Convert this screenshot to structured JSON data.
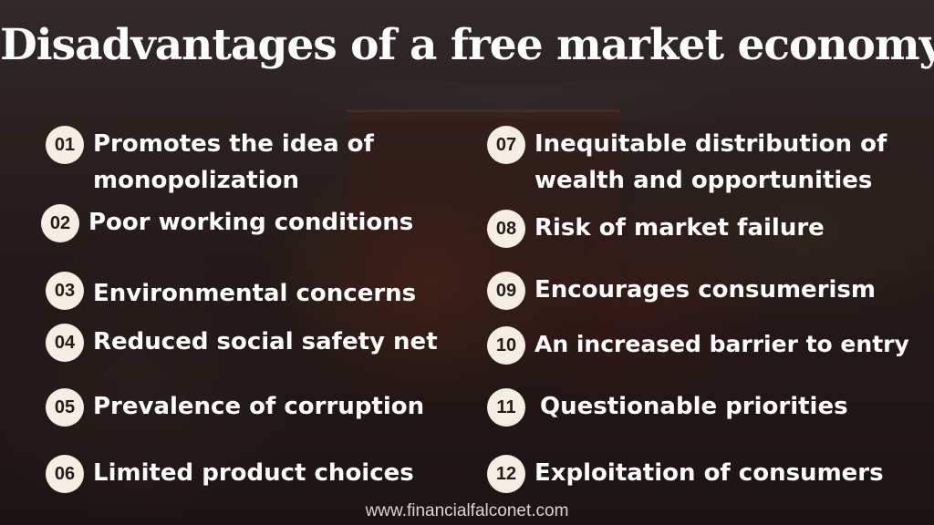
{
  "title": "Disadvantages of a free market economy",
  "items_left": [
    {
      "number": "01",
      "line1": "Promotes the idea of",
      "line2": "monopolization"
    },
    {
      "number": "02",
      "line1": "Poor working conditions"
    },
    {
      "number": "03",
      "line1": "Environmental concerns"
    },
    {
      "number": "04",
      "line1": "Reduced social safety net"
    },
    {
      "number": "05",
      "line1": "Prevalence of corruption"
    },
    {
      "number": "06",
      "line1": "Limited product choices"
    }
  ],
  "items_right": [
    {
      "number": "07",
      "line1": "Inequitable distribution of",
      "line2": "wealth and opportunities"
    },
    {
      "number": "08",
      "line1": "Risk of market failure"
    },
    {
      "number": "09",
      "line1": "Encourages consumerism"
    },
    {
      "number": "10",
      "line1": "An increased barrier to entry"
    },
    {
      "number": "11",
      "line1": "Questionable priorities"
    },
    {
      "number": "12",
      "line1": "Exploitation of consumers"
    }
  ],
  "footer": "www.financialfalconet.com"
}
